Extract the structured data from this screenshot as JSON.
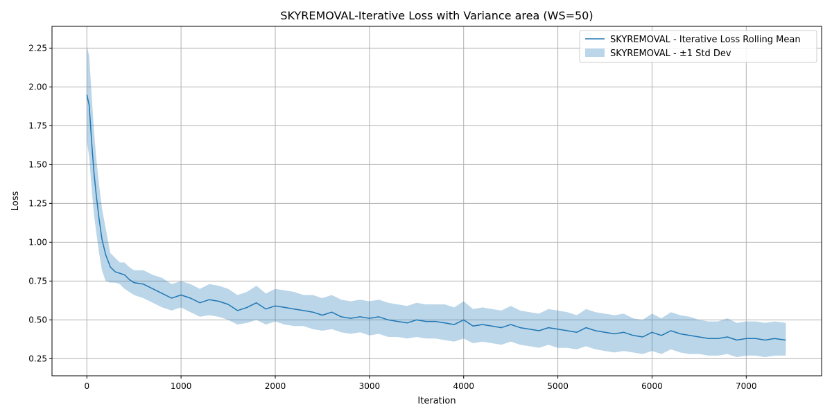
{
  "colors": {
    "line": "#1f77b4",
    "band": "#1f77b4",
    "grid": "#b0b0b0",
    "axis": "#000000",
    "background": "#ffffff"
  },
  "chart_data": {
    "type": "line",
    "title": "SKYREMOVAL-Iterative Loss with Variance area (WS=50)",
    "xlabel": "Iteration",
    "ylabel": "Loss",
    "xlim": [
      -370,
      7800
    ],
    "ylim": [
      0.14,
      2.39
    ],
    "xticks": [
      0,
      1000,
      2000,
      3000,
      4000,
      5000,
      6000,
      7000
    ],
    "xtick_labels": [
      "0",
      "1000",
      "2000",
      "3000",
      "4000",
      "5000",
      "6000",
      "7000"
    ],
    "yticks": [
      0.25,
      0.5,
      0.75,
      1.0,
      1.25,
      1.5,
      1.75,
      2.0,
      2.25
    ],
    "ytick_labels": [
      "0.25",
      "0.50",
      "0.75",
      "1.00",
      "1.25",
      "1.50",
      "1.75",
      "2.00",
      "2.25"
    ],
    "grid": true,
    "legend_position": "top-right",
    "series": [
      {
        "name": "SKYREMOVAL - Iterative Loss Rolling Mean",
        "kind": "line",
        "x": [
          0,
          25,
          50,
          75,
          100,
          130,
          160,
          200,
          250,
          300,
          350,
          400,
          450,
          500,
          600,
          700,
          800,
          900,
          1000,
          1100,
          1200,
          1300,
          1400,
          1500,
          1600,
          1700,
          1800,
          1900,
          2000,
          2100,
          2200,
          2300,
          2400,
          2500,
          2600,
          2700,
          2800,
          2900,
          3000,
          3100,
          3200,
          3300,
          3400,
          3500,
          3600,
          3700,
          3800,
          3900,
          4000,
          4100,
          4200,
          4300,
          4400,
          4500,
          4600,
          4700,
          4800,
          4900,
          5000,
          5100,
          5200,
          5300,
          5400,
          5500,
          5600,
          5700,
          5800,
          5900,
          6000,
          6100,
          6200,
          6300,
          6400,
          6500,
          6600,
          6700,
          6800,
          6900,
          7000,
          7100,
          7200,
          7300,
          7420
        ],
        "y": [
          1.95,
          1.88,
          1.65,
          1.45,
          1.3,
          1.15,
          1.02,
          0.92,
          0.84,
          0.81,
          0.8,
          0.79,
          0.76,
          0.74,
          0.73,
          0.7,
          0.67,
          0.64,
          0.66,
          0.64,
          0.61,
          0.63,
          0.62,
          0.6,
          0.56,
          0.58,
          0.61,
          0.57,
          0.59,
          0.58,
          0.57,
          0.56,
          0.55,
          0.53,
          0.55,
          0.52,
          0.51,
          0.52,
          0.51,
          0.52,
          0.5,
          0.49,
          0.48,
          0.5,
          0.49,
          0.49,
          0.48,
          0.47,
          0.5,
          0.46,
          0.47,
          0.46,
          0.45,
          0.47,
          0.45,
          0.44,
          0.43,
          0.45,
          0.44,
          0.43,
          0.42,
          0.45,
          0.43,
          0.42,
          0.41,
          0.42,
          0.4,
          0.39,
          0.42,
          0.4,
          0.43,
          0.41,
          0.4,
          0.39,
          0.38,
          0.38,
          0.39,
          0.37,
          0.38,
          0.38,
          0.37,
          0.38,
          0.37
        ]
      },
      {
        "name": "SKYREMOVAL - ±1 Std Dev",
        "kind": "band",
        "x": [
          0,
          25,
          50,
          75,
          100,
          130,
          160,
          200,
          250,
          300,
          350,
          400,
          450,
          500,
          600,
          700,
          800,
          900,
          1000,
          1100,
          1200,
          1300,
          1400,
          1500,
          1600,
          1700,
          1800,
          1900,
          2000,
          2100,
          2200,
          2300,
          2400,
          2500,
          2600,
          2700,
          2800,
          2900,
          3000,
          3100,
          3200,
          3300,
          3400,
          3500,
          3600,
          3700,
          3800,
          3900,
          4000,
          4100,
          4200,
          4300,
          4400,
          4500,
          4600,
          4700,
          4800,
          4900,
          5000,
          5100,
          5200,
          5300,
          5400,
          5500,
          5600,
          5700,
          5800,
          5900,
          6000,
          6100,
          6200,
          6300,
          6400,
          6500,
          6600,
          6700,
          6800,
          6900,
          7000,
          7100,
          7200,
          7300,
          7420
        ],
        "lower": [
          1.65,
          1.55,
          1.35,
          1.18,
          1.06,
          0.93,
          0.82,
          0.75,
          0.74,
          0.74,
          0.73,
          0.7,
          0.68,
          0.66,
          0.64,
          0.61,
          0.58,
          0.56,
          0.58,
          0.55,
          0.52,
          0.53,
          0.52,
          0.5,
          0.47,
          0.48,
          0.5,
          0.47,
          0.49,
          0.47,
          0.46,
          0.46,
          0.44,
          0.43,
          0.44,
          0.42,
          0.41,
          0.42,
          0.4,
          0.41,
          0.39,
          0.39,
          0.38,
          0.39,
          0.38,
          0.38,
          0.37,
          0.36,
          0.38,
          0.35,
          0.36,
          0.35,
          0.34,
          0.36,
          0.34,
          0.33,
          0.32,
          0.34,
          0.32,
          0.32,
          0.31,
          0.33,
          0.31,
          0.3,
          0.29,
          0.3,
          0.29,
          0.28,
          0.3,
          0.28,
          0.31,
          0.29,
          0.28,
          0.28,
          0.27,
          0.27,
          0.28,
          0.26,
          0.27,
          0.27,
          0.26,
          0.27,
          0.27
        ],
        "upper": [
          2.26,
          2.2,
          1.95,
          1.72,
          1.54,
          1.37,
          1.22,
          1.09,
          0.93,
          0.9,
          0.87,
          0.87,
          0.84,
          0.82,
          0.82,
          0.79,
          0.77,
          0.73,
          0.75,
          0.73,
          0.7,
          0.73,
          0.72,
          0.7,
          0.66,
          0.68,
          0.72,
          0.67,
          0.7,
          0.69,
          0.68,
          0.66,
          0.66,
          0.64,
          0.66,
          0.63,
          0.62,
          0.63,
          0.62,
          0.63,
          0.61,
          0.6,
          0.59,
          0.61,
          0.6,
          0.6,
          0.6,
          0.58,
          0.62,
          0.57,
          0.58,
          0.57,
          0.56,
          0.59,
          0.56,
          0.55,
          0.54,
          0.57,
          0.56,
          0.55,
          0.53,
          0.57,
          0.55,
          0.54,
          0.53,
          0.54,
          0.51,
          0.5,
          0.54,
          0.51,
          0.55,
          0.53,
          0.52,
          0.5,
          0.49,
          0.49,
          0.51,
          0.48,
          0.49,
          0.49,
          0.48,
          0.49,
          0.48
        ]
      }
    ]
  }
}
